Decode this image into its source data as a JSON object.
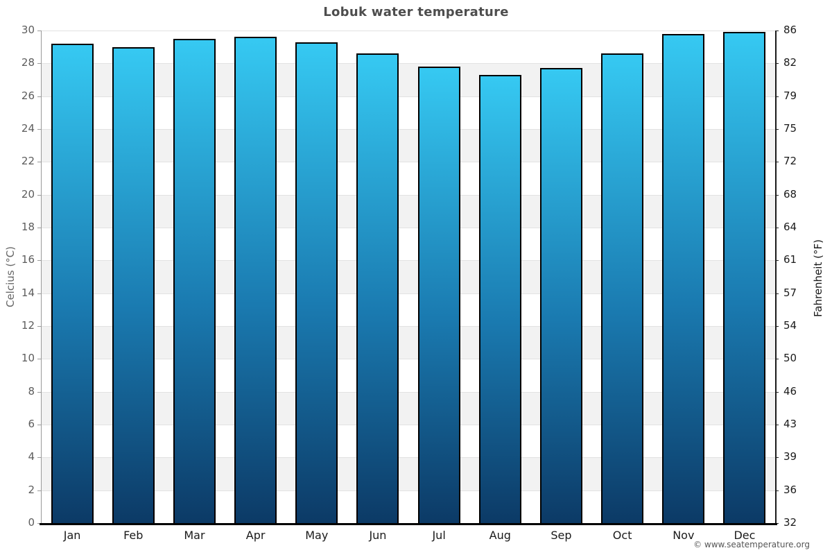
{
  "title": "Lobuk water temperature",
  "footer": "© www.seatemperature.org",
  "chart_data": {
    "type": "bar",
    "title": "Lobuk water temperature",
    "categories": [
      "Jan",
      "Feb",
      "Mar",
      "Apr",
      "May",
      "Jun",
      "Jul",
      "Aug",
      "Sep",
      "Oct",
      "Nov",
      "Dec"
    ],
    "values": [
      29.2,
      29.0,
      29.5,
      29.6,
      29.3,
      28.6,
      27.8,
      27.3,
      27.7,
      28.6,
      29.8,
      29.9
    ],
    "unit": "°C",
    "ylabel_left": "Celcius (°C)",
    "ylabel_right": "Fahrenheit (°F)",
    "ylim": [
      0,
      30
    ],
    "celsius_ticks": [
      30,
      28,
      26,
      24,
      22,
      20,
      18,
      16,
      14,
      12,
      10,
      8,
      6,
      4,
      2,
      0
    ],
    "fahrenheit_tick_labels": [
      "86",
      "82",
      "79",
      "75",
      "72",
      "68",
      "64",
      "61",
      "57",
      "54",
      "50",
      "46",
      "43",
      "39",
      "36",
      "32"
    ],
    "legend": "none",
    "grid": "horizontal alternating bands every 2°C",
    "colors": {
      "bar_gradient_top": "#36c9f2",
      "bar_gradient_bottom": "#0c3a66",
      "bar_border": "#000000",
      "band_gray": "#f2f2f2",
      "band_white": "#ffffff",
      "gridline": "#e2e2e2",
      "title_text": "#4d4d4d",
      "left_tick_text": "#5c5c5c",
      "right_tick_text": "#1a1a1a",
      "bottom_axis": "#000000",
      "left_axis_line": "#999999"
    }
  }
}
